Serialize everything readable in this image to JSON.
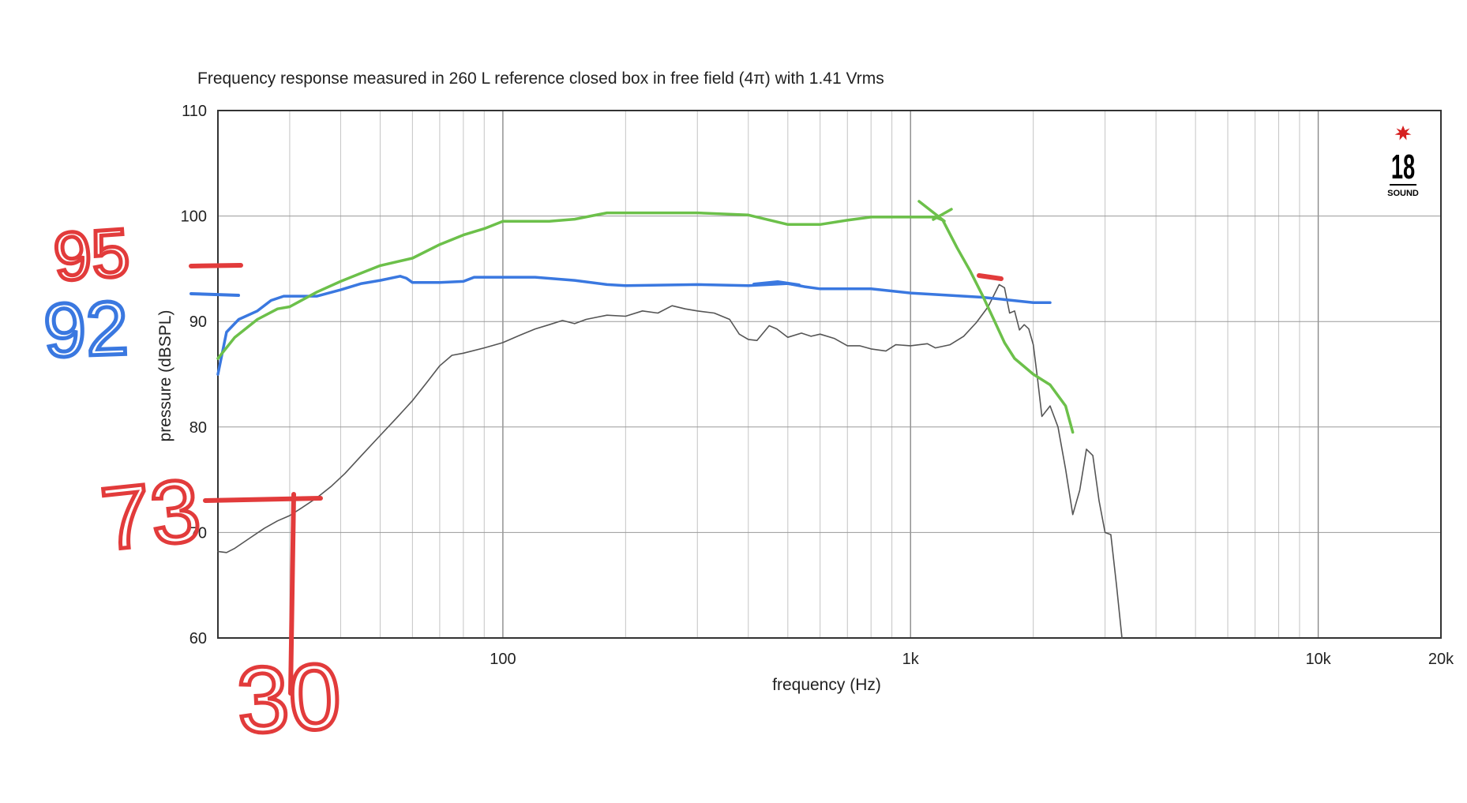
{
  "chart_data": {
    "type": "line",
    "title": "Frequency response measured in 260 L reference closed box in free field (4π) with 1.41 Vrms",
    "xlabel": "frequency (Hz)",
    "ylabel": "pressure (dBSPL)",
    "x_scale": "log",
    "xlim": [
      20,
      20000
    ],
    "ylim": [
      60,
      110
    ],
    "x_ticks": [
      {
        "value": 100,
        "label": "100"
      },
      {
        "value": 1000,
        "label": "1k"
      },
      {
        "value": 10000,
        "label": "10k"
      },
      {
        "value": 20000,
        "label": "20k"
      }
    ],
    "y_ticks": [
      {
        "value": 60,
        "label": "60"
      },
      {
        "value": 70,
        "label": "70"
      },
      {
        "value": 80,
        "label": "80"
      },
      {
        "value": 90,
        "label": "90"
      },
      {
        "value": 100,
        "label": "100"
      },
      {
        "value": 110,
        "label": "110"
      }
    ],
    "grid": true,
    "logo": {
      "text": "18",
      "subtext": "SOUND",
      "accent_color": "#d62020"
    },
    "series": [
      {
        "color": "#555555",
        "style": "measured",
        "points": [
          [
            20,
            68.2
          ],
          [
            21,
            68.1
          ],
          [
            22,
            68.5
          ],
          [
            24,
            69.5
          ],
          [
            26,
            70.4
          ],
          [
            28,
            71.1
          ],
          [
            30,
            71.6
          ],
          [
            32,
            72.3
          ],
          [
            35,
            73.3
          ],
          [
            38,
            74.4
          ],
          [
            41,
            75.6
          ],
          [
            45,
            77.3
          ],
          [
            50,
            79.2
          ],
          [
            55,
            80.9
          ],
          [
            60,
            82.5
          ],
          [
            65,
            84.2
          ],
          [
            70,
            85.8
          ],
          [
            75,
            86.8
          ],
          [
            80,
            87.0
          ],
          [
            90,
            87.5
          ],
          [
            100,
            88.0
          ],
          [
            110,
            88.7
          ],
          [
            120,
            89.3
          ],
          [
            130,
            89.7
          ],
          [
            140,
            90.1
          ],
          [
            150,
            89.8
          ],
          [
            160,
            90.2
          ],
          [
            180,
            90.6
          ],
          [
            200,
            90.5
          ],
          [
            220,
            91.0
          ],
          [
            240,
            90.8
          ],
          [
            260,
            91.5
          ],
          [
            280,
            91.2
          ],
          [
            300,
            91.0
          ],
          [
            330,
            90.8
          ],
          [
            360,
            90.2
          ],
          [
            380,
            88.8
          ],
          [
            400,
            88.3
          ],
          [
            420,
            88.2
          ],
          [
            450,
            89.6
          ],
          [
            470,
            89.3
          ],
          [
            500,
            88.5
          ],
          [
            540,
            88.9
          ],
          [
            570,
            88.6
          ],
          [
            600,
            88.8
          ],
          [
            650,
            88.4
          ],
          [
            700,
            87.7
          ],
          [
            750,
            87.7
          ],
          [
            800,
            87.4
          ],
          [
            870,
            87.2
          ],
          [
            920,
            87.8
          ],
          [
            1000,
            87.7
          ],
          [
            1100,
            87.9
          ],
          [
            1150,
            87.5
          ],
          [
            1250,
            87.8
          ],
          [
            1350,
            88.6
          ],
          [
            1450,
            89.9
          ],
          [
            1550,
            91.4
          ],
          [
            1650,
            93.5
          ],
          [
            1700,
            93.2
          ],
          [
            1750,
            90.8
          ],
          [
            1800,
            91.0
          ],
          [
            1850,
            89.2
          ],
          [
            1900,
            89.7
          ],
          [
            1950,
            89.3
          ],
          [
            2000,
            87.8
          ],
          [
            2050,
            84.5
          ],
          [
            2100,
            81.0
          ],
          [
            2200,
            82.0
          ],
          [
            2300,
            80.0
          ],
          [
            2400,
            76.0
          ],
          [
            2500,
            71.7
          ],
          [
            2600,
            74.0
          ],
          [
            2700,
            77.9
          ],
          [
            2800,
            77.3
          ],
          [
            2900,
            73.0
          ],
          [
            3000,
            70.0
          ],
          [
            3100,
            69.8
          ],
          [
            3200,
            65.0
          ],
          [
            3300,
            60.0
          ]
        ]
      },
      {
        "color": "#3a78e0",
        "style": "annotation",
        "points": [
          [
            20,
            85
          ],
          [
            21,
            89.0
          ],
          [
            22.5,
            90.2
          ],
          [
            25,
            91.0
          ],
          [
            27,
            92.0
          ],
          [
            29,
            92.4
          ],
          [
            35,
            92.4
          ],
          [
            40,
            93.0
          ],
          [
            45,
            93.6
          ],
          [
            50,
            93.9
          ],
          [
            56,
            94.3
          ],
          [
            58,
            94.1
          ],
          [
            60,
            93.7
          ],
          [
            70,
            93.7
          ],
          [
            80,
            93.8
          ],
          [
            85,
            94.2
          ],
          [
            100,
            94.2
          ],
          [
            120,
            94.2
          ],
          [
            150,
            93.9
          ],
          [
            180,
            93.5
          ],
          [
            200,
            93.4
          ],
          [
            300,
            93.5
          ],
          [
            400,
            93.4
          ],
          [
            500,
            93.6
          ],
          [
            550,
            93.3
          ],
          [
            600,
            93.1
          ],
          [
            800,
            93.1
          ],
          [
            1000,
            92.7
          ],
          [
            1500,
            92.3
          ],
          [
            2000,
            91.8
          ],
          [
            2200,
            91.8
          ]
        ]
      },
      {
        "color": "#6cc04a",
        "style": "annotation",
        "points": [
          [
            20,
            86.5
          ],
          [
            22,
            88.5
          ],
          [
            25,
            90.2
          ],
          [
            28,
            91.2
          ],
          [
            30,
            91.4
          ],
          [
            35,
            92.8
          ],
          [
            40,
            93.8
          ],
          [
            45,
            94.6
          ],
          [
            50,
            95.3
          ],
          [
            60,
            96.0
          ],
          [
            70,
            97.3
          ],
          [
            80,
            98.2
          ],
          [
            90,
            98.8
          ],
          [
            100,
            99.5
          ],
          [
            110,
            99.5
          ],
          [
            130,
            99.5
          ],
          [
            150,
            99.7
          ],
          [
            180,
            100.3
          ],
          [
            200,
            100.3
          ],
          [
            300,
            100.3
          ],
          [
            400,
            100.1
          ],
          [
            500,
            99.2
          ],
          [
            600,
            99.2
          ],
          [
            700,
            99.6
          ],
          [
            800,
            99.9
          ],
          [
            1000,
            99.9
          ],
          [
            1150,
            99.9
          ],
          [
            1200,
            99.6
          ],
          [
            1300,
            97.0
          ],
          [
            1400,
            94.8
          ],
          [
            1500,
            92.5
          ],
          [
            1600,
            90.2
          ],
          [
            1700,
            88.0
          ],
          [
            1800,
            86.5
          ],
          [
            2000,
            85.0
          ],
          [
            2200,
            84.0
          ],
          [
            2400,
            82.0
          ],
          [
            2500,
            79.5
          ]
        ]
      }
    ],
    "handwritten_annotations": [
      {
        "text": "95",
        "color": "#e23b3b"
      },
      {
        "text": "92",
        "color": "#3a78e0"
      },
      {
        "text": "73",
        "color": "#e23b3b"
      },
      {
        "text": "30",
        "color": "#e23b3b"
      }
    ]
  }
}
